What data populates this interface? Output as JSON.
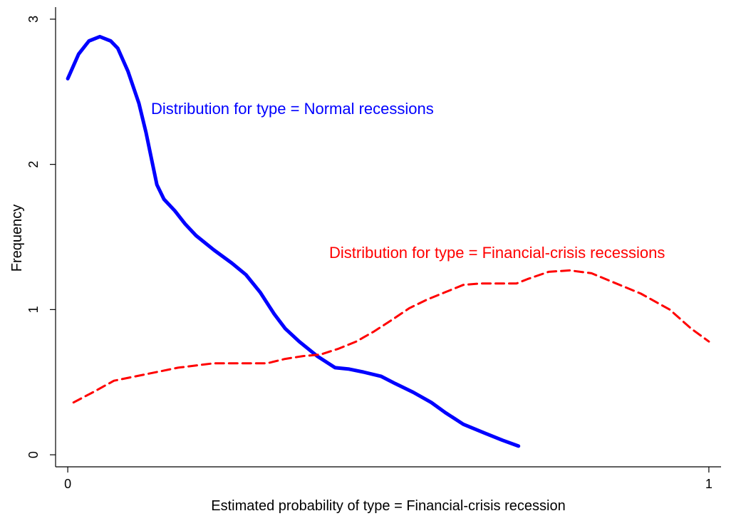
{
  "chart_data": {
    "type": "line",
    "x_label": "Estimated probability of type = Financial-crisis recession",
    "y_label": "Frequency",
    "xlim": [
      -0.019,
      1.019
    ],
    "ylim": [
      -0.083,
      3.083
    ],
    "xticks": [
      0,
      1
    ],
    "yticks": [
      0,
      1,
      2,
      3
    ],
    "series": [
      {
        "name": "Distribution for type = Normal recessions",
        "color": "#0000ff",
        "line_style": "solid",
        "x": [
          0,
          0.017,
          0.033,
          0.05,
          0.067,
          0.078,
          0.094,
          0.111,
          0.122,
          0.13,
          0.139,
          0.15,
          0.167,
          0.183,
          0.2,
          0.228,
          0.256,
          0.278,
          0.3,
          0.322,
          0.339,
          0.361,
          0.389,
          0.417,
          0.439,
          0.461,
          0.489,
          0.511,
          0.539,
          0.567,
          0.589,
          0.617,
          0.65,
          0.678,
          0.703
        ],
        "values": [
          2.59,
          2.76,
          2.85,
          2.88,
          2.85,
          2.8,
          2.64,
          2.42,
          2.22,
          2.05,
          1.86,
          1.76,
          1.68,
          1.59,
          1.51,
          1.41,
          1.32,
          1.24,
          1.12,
          0.97,
          0.87,
          0.78,
          0.68,
          0.6,
          0.59,
          0.57,
          0.54,
          0.49,
          0.43,
          0.36,
          0.29,
          0.21,
          0.15,
          0.1,
          0.06
        ]
      },
      {
        "name": "Distribution for type = Financial-crisis recessions",
        "color": "#ff0000",
        "line_style": "dashed",
        "x": [
          0.009,
          0.039,
          0.072,
          0.117,
          0.172,
          0.228,
          0.283,
          0.311,
          0.339,
          0.367,
          0.394,
          0.422,
          0.45,
          0.478,
          0.506,
          0.533,
          0.561,
          0.589,
          0.617,
          0.644,
          0.672,
          0.7,
          0.717,
          0.75,
          0.783,
          0.817,
          0.85,
          0.894,
          0.939,
          0.972,
          1.0
        ],
        "values": [
          0.36,
          0.43,
          0.51,
          0.55,
          0.6,
          0.63,
          0.63,
          0.63,
          0.66,
          0.68,
          0.69,
          0.73,
          0.78,
          0.85,
          0.93,
          1.01,
          1.07,
          1.12,
          1.17,
          1.18,
          1.18,
          1.18,
          1.21,
          1.26,
          1.27,
          1.25,
          1.19,
          1.11,
          1.0,
          0.87,
          0.78
        ]
      }
    ]
  }
}
